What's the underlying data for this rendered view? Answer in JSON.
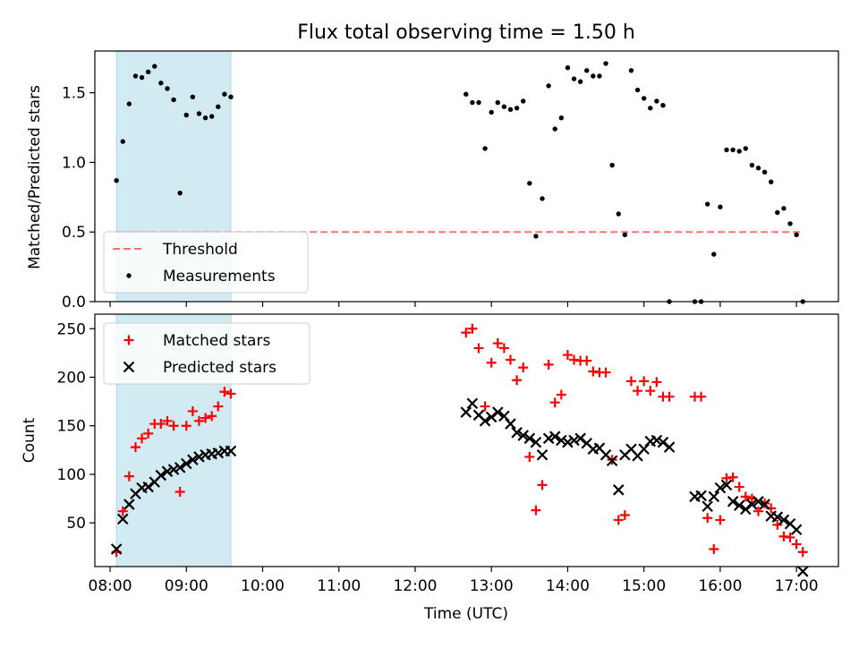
{
  "chart_data": [
    {
      "type": "scatter",
      "title": "Flux total observing time = 1.50 h",
      "ylabel": "Matched/Predicted stars",
      "xlabel": "",
      "xlim": [
        "07:48",
        "17:33"
      ],
      "ylim": [
        0,
        1.8
      ],
      "x_ticks": [
        "08:00",
        "09:00",
        "10:00",
        "11:00",
        "12:00",
        "13:00",
        "14:00",
        "15:00",
        "16:00",
        "17:00"
      ],
      "y_ticks": [
        "0.0",
        "0.5",
        "1.0",
        "1.5"
      ],
      "shaded_span": [
        "08:05",
        "09:35"
      ],
      "shade_color": "#add8e6",
      "legend_position": "lower left",
      "threshold": {
        "name": "Threshold",
        "value": 0.5,
        "x_range": [
          "08:05",
          "17:05"
        ],
        "color": "#ff0000",
        "style": "dashed"
      },
      "series": [
        {
          "name": "Measurements",
          "color": "#000000",
          "marker": "dot",
          "x": [
            "08:05",
            "08:10",
            "08:15",
            "08:20",
            "08:25",
            "08:30",
            "08:35",
            "08:40",
            "08:45",
            "08:50",
            "08:55",
            "09:00",
            "09:05",
            "09:10",
            "09:15",
            "09:20",
            "09:25",
            "09:30",
            "09:35",
            "12:40",
            "12:45",
            "12:50",
            "12:55",
            "13:00",
            "13:05",
            "13:10",
            "13:15",
            "13:20",
            "13:25",
            "13:30",
            "13:35",
            "13:40",
            "13:45",
            "13:50",
            "13:55",
            "14:00",
            "14:05",
            "14:10",
            "14:15",
            "14:20",
            "14:25",
            "14:30",
            "14:35",
            "14:40",
            "14:45",
            "14:50",
            "14:55",
            "15:00",
            "15:05",
            "15:10",
            "15:15",
            "15:20",
            "15:40",
            "15:45",
            "15:50",
            "15:55",
            "16:00",
            "16:05",
            "16:10",
            "16:15",
            "16:20",
            "16:25",
            "16:30",
            "16:35",
            "16:40",
            "16:45",
            "16:50",
            "16:55",
            "17:00",
            "17:05"
          ],
          "y": [
            0.87,
            1.15,
            1.42,
            1.62,
            1.61,
            1.65,
            1.69,
            1.57,
            1.53,
            1.45,
            0.78,
            1.34,
            1.47,
            1.35,
            1.32,
            1.33,
            1.4,
            1.49,
            1.47,
            1.49,
            1.43,
            1.43,
            1.1,
            1.36,
            1.43,
            1.4,
            1.38,
            1.39,
            1.44,
            0.85,
            0.47,
            0.74,
            1.55,
            1.24,
            1.32,
            1.68,
            1.6,
            1.58,
            1.66,
            1.62,
            1.62,
            1.71,
            0.98,
            0.63,
            0.48,
            1.66,
            1.52,
            1.46,
            1.39,
            1.44,
            1.41,
            0.0,
            0.0,
            0.0,
            0.7,
            0.34,
            0.68,
            1.09,
            1.09,
            1.08,
            1.1,
            0.98,
            0.96,
            0.93,
            0.86,
            0.64,
            0.67,
            0.56,
            0.48,
            0.0
          ]
        }
      ]
    },
    {
      "type": "scatter",
      "title": "",
      "ylabel": "Count",
      "xlabel": "Time (UTC)",
      "xlim": [
        "07:48",
        "17:33"
      ],
      "ylim": [
        5,
        265
      ],
      "x_ticks": [
        "08:00",
        "09:00",
        "10:00",
        "11:00",
        "12:00",
        "13:00",
        "14:00",
        "15:00",
        "16:00",
        "17:00"
      ],
      "y_ticks": [
        "50",
        "100",
        "150",
        "200",
        "250"
      ],
      "shaded_span": [
        "08:05",
        "09:35"
      ],
      "shade_color": "#add8e6",
      "legend_position": "upper left",
      "series": [
        {
          "name": "Matched stars",
          "color": "#ff0000",
          "marker": "plus",
          "x": [
            "08:05",
            "08:10",
            "08:15",
            "08:20",
            "08:25",
            "08:30",
            "08:35",
            "08:40",
            "08:45",
            "08:50",
            "08:55",
            "09:00",
            "09:05",
            "09:10",
            "09:15",
            "09:20",
            "09:25",
            "09:30",
            "09:35",
            "12:40",
            "12:45",
            "12:50",
            "12:55",
            "13:00",
            "13:05",
            "13:10",
            "13:15",
            "13:20",
            "13:25",
            "13:30",
            "13:35",
            "13:40",
            "13:45",
            "13:50",
            "13:55",
            "14:00",
            "14:05",
            "14:10",
            "14:15",
            "14:20",
            "14:25",
            "14:30",
            "14:35",
            "14:40",
            "14:45",
            "14:50",
            "14:55",
            "15:00",
            "15:05",
            "15:10",
            "15:15",
            "15:20",
            "15:40",
            "15:45",
            "15:50",
            "15:55",
            "16:00",
            "16:05",
            "16:10",
            "16:15",
            "16:20",
            "16:25",
            "16:30",
            "16:35",
            "16:40",
            "16:45",
            "16:50",
            "16:55",
            "17:00",
            "17:05"
          ],
          "y": [
            20,
            62,
            98,
            128,
            137,
            142,
            152,
            152,
            155,
            150,
            82,
            150,
            165,
            155,
            158,
            160,
            170,
            185,
            183,
            246,
            250,
            230,
            170,
            215,
            235,
            230,
            218,
            197,
            210,
            118,
            63,
            89,
            213,
            174,
            182,
            223,
            218,
            217,
            217,
            206,
            205,
            205,
            115,
            53,
            58,
            196,
            186,
            196,
            186,
            195,
            180,
            180,
            180,
            180,
            55,
            23,
            53,
            96,
            97,
            87,
            77,
            75,
            62,
            70,
            65,
            48,
            36,
            35,
            28,
            20
          ]
        },
        {
          "name": "Predicted stars",
          "color": "#000000",
          "marker": "x",
          "x": [
            "08:05",
            "08:10",
            "08:15",
            "08:20",
            "08:25",
            "08:30",
            "08:35",
            "08:40",
            "08:45",
            "08:50",
            "08:55",
            "09:00",
            "09:05",
            "09:10",
            "09:15",
            "09:20",
            "09:25",
            "09:30",
            "09:35",
            "12:40",
            "12:45",
            "12:50",
            "12:55",
            "13:00",
            "13:05",
            "13:10",
            "13:15",
            "13:20",
            "13:25",
            "13:30",
            "13:35",
            "13:40",
            "13:45",
            "13:50",
            "13:55",
            "14:00",
            "14:05",
            "14:10",
            "14:15",
            "14:20",
            "14:25",
            "14:30",
            "14:35",
            "14:40",
            "14:45",
            "14:50",
            "14:55",
            "15:00",
            "15:05",
            "15:10",
            "15:15",
            "15:20",
            "15:40",
            "15:45",
            "15:50",
            "15:55",
            "16:00",
            "16:05",
            "16:10",
            "16:15",
            "16:20",
            "16:25",
            "16:30",
            "16:35",
            "16:40",
            "16:45",
            "16:50",
            "16:55",
            "17:00",
            "17:05"
          ],
          "y": [
            23,
            54,
            69,
            80,
            86,
            87,
            92,
            99,
            103,
            105,
            107,
            111,
            115,
            118,
            120,
            121,
            122,
            124,
            124,
            164,
            173,
            161,
            155,
            159,
            164,
            160,
            152,
            143,
            140,
            137,
            133,
            120,
            137,
            139,
            135,
            133,
            135,
            137,
            132,
            126,
            127,
            120,
            114,
            84,
            120,
            126,
            119,
            126,
            134,
            135,
            133,
            128,
            77,
            78,
            67,
            77,
            86,
            89,
            72,
            68,
            64,
            69,
            72,
            69,
            57,
            56,
            53,
            49,
            43,
            0
          ]
        }
      ]
    }
  ]
}
